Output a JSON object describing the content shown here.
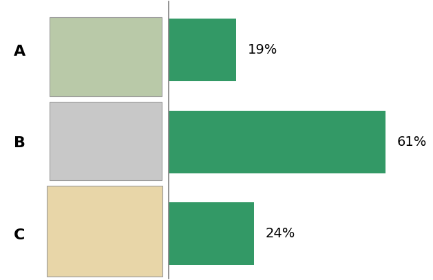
{
  "chart_data": {
    "type": "bar",
    "orientation": "horizontal",
    "categories": [
      "A",
      "B",
      "C"
    ],
    "values": [
      19,
      61,
      24
    ],
    "value_labels": [
      "19%",
      "61%",
      "24%"
    ],
    "data_labels": true,
    "color": "#339966",
    "tick_labels": "y"
  }
}
